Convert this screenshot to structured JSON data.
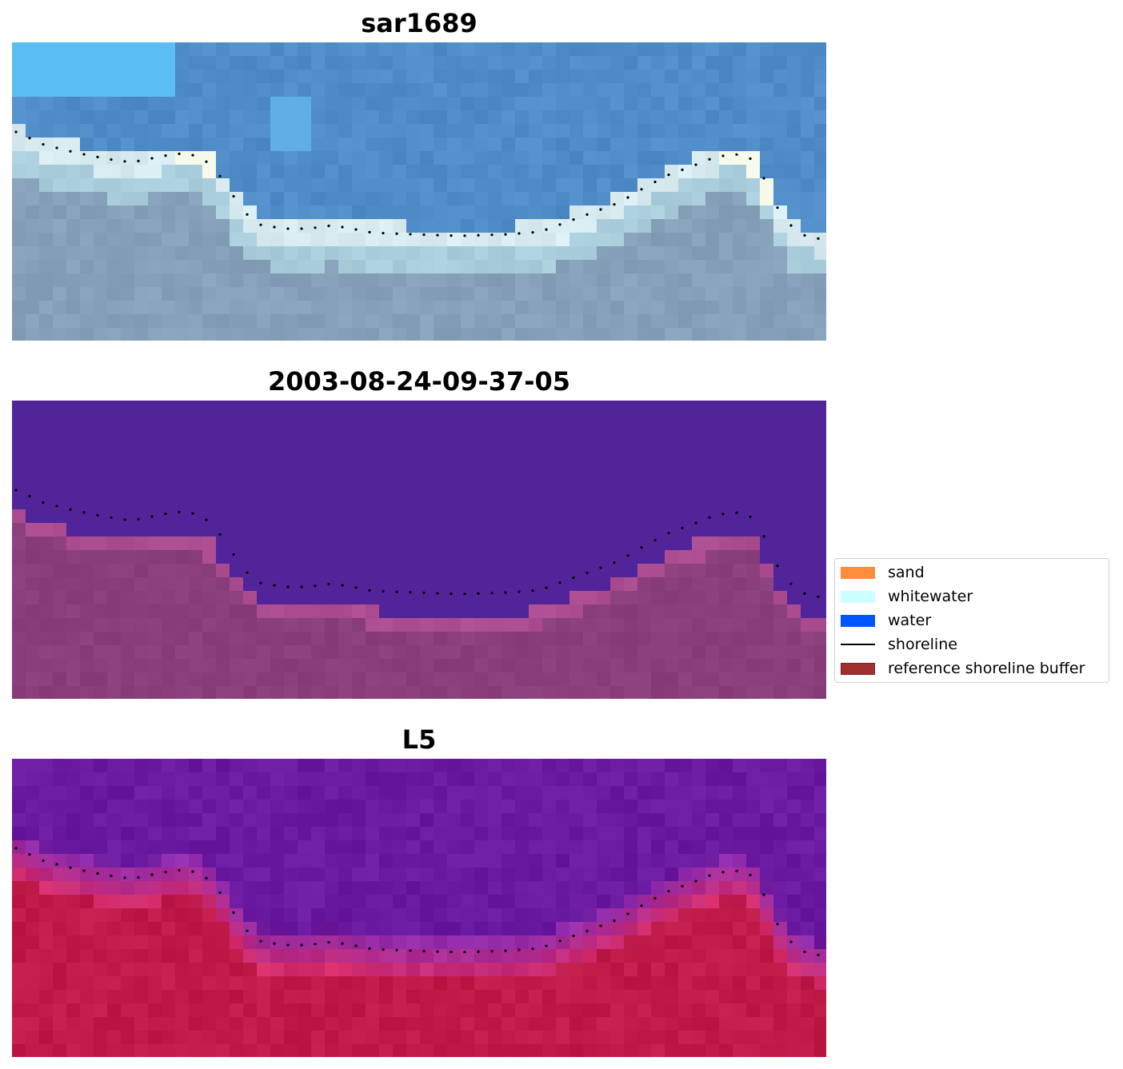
{
  "panels": [
    {
      "title": "sar1689"
    },
    {
      "title": "2003-08-24-09-37-05"
    },
    {
      "title": "L5"
    }
  ],
  "legend": {
    "items": [
      {
        "label": "sand",
        "color": "#ff8c3a",
        "kind": "patch"
      },
      {
        "label": "whitewater",
        "color": "#ccffff",
        "kind": "patch"
      },
      {
        "label": "water",
        "color": "#0055ff",
        "kind": "patch"
      },
      {
        "label": "shoreline",
        "color": "#000000",
        "kind": "line"
      },
      {
        "label": "reference shoreline buffer",
        "color": "#a0302f",
        "kind": "patch"
      }
    ]
  },
  "colors": {
    "classification_water": "#52249a",
    "classification_land": "#8a3f7c",
    "index_water": "#6a1aa0",
    "index_land": "#c01a48"
  }
}
